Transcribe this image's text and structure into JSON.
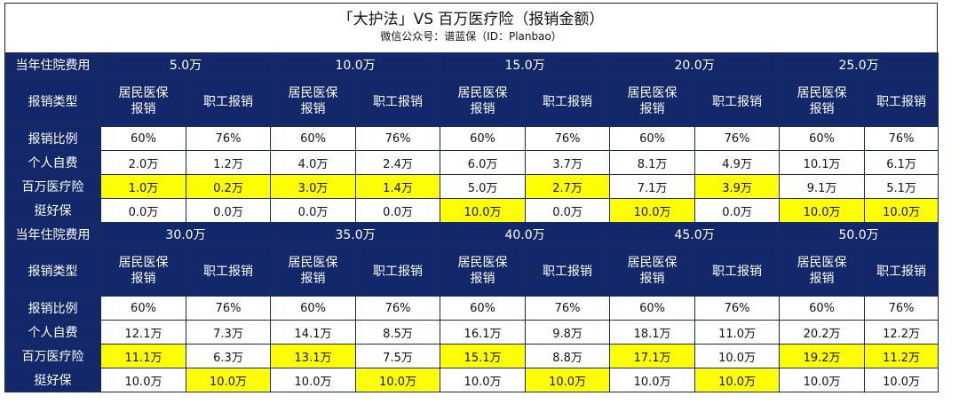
{
  "title": "「大护法」VS 百万医疗险（报销金额）",
  "subtitle": "微信公众号：谱蓝保（ID：Planbao）",
  "labels": {
    "cost": "当年住院费用",
    "type": "报销类型",
    "ratio": "报销比例",
    "self": "个人自费",
    "million": "百万医疗险",
    "tinghao": "挺好保"
  },
  "col_labels": {
    "resident": "居民医保\n报销",
    "employee": "职工报销"
  },
  "highlight_color": "#ffff00",
  "header_color": "#12286a",
  "blocks": [
    {
      "costs": [
        "5.0万",
        "10.0万",
        "15.0万",
        "20.0万",
        "25.0万"
      ],
      "ratio": [
        "60%",
        "76%",
        "60%",
        "76%",
        "60%",
        "76%",
        "60%",
        "76%",
        "60%",
        "76%"
      ],
      "self": [
        "2.0万",
        "1.2万",
        "4.0万",
        "2.4万",
        "6.0万",
        "3.7万",
        "8.1万",
        "4.9万",
        "10.1万",
        "6.1万"
      ],
      "million": [
        "1.0万",
        "0.2万",
        "3.0万",
        "1.4万",
        "5.0万",
        "2.7万",
        "7.1万",
        "3.9万",
        "9.1万",
        "5.1万"
      ],
      "million_hl": [
        true,
        true,
        true,
        true,
        false,
        true,
        false,
        true,
        false,
        false
      ],
      "tinghao": [
        "0.0万",
        "0.0万",
        "0.0万",
        "0.0万",
        "10.0万",
        "0.0万",
        "10.0万",
        "0.0万",
        "10.0万",
        "10.0万"
      ],
      "tinghao_hl": [
        false,
        false,
        false,
        false,
        true,
        false,
        true,
        false,
        true,
        true
      ]
    },
    {
      "costs": [
        "30.0万",
        "35.0万",
        "40.0万",
        "45.0万",
        "50.0万"
      ],
      "ratio": [
        "60%",
        "76%",
        "60%",
        "76%",
        "60%",
        "76%",
        "60%",
        "76%",
        "60%",
        "76%"
      ],
      "self": [
        "12.1万",
        "7.3万",
        "14.1万",
        "8.5万",
        "16.1万",
        "9.8万",
        "18.1万",
        "11.0万",
        "20.2万",
        "12.2万"
      ],
      "million": [
        "11.1万",
        "6.3万",
        "13.1万",
        "7.5万",
        "15.1万",
        "8.8万",
        "17.1万",
        "10.0万",
        "19.2万",
        "11.2万"
      ],
      "million_hl": [
        true,
        false,
        true,
        false,
        true,
        false,
        true,
        false,
        true,
        true
      ],
      "tinghao": [
        "10.0万",
        "10.0万",
        "10.0万",
        "10.0万",
        "10.0万",
        "10.0万",
        "10.0万",
        "10.0万",
        "10.0万",
        "10.0万"
      ],
      "tinghao_hl": [
        false,
        true,
        false,
        true,
        false,
        true,
        false,
        true,
        false,
        false
      ]
    }
  ]
}
